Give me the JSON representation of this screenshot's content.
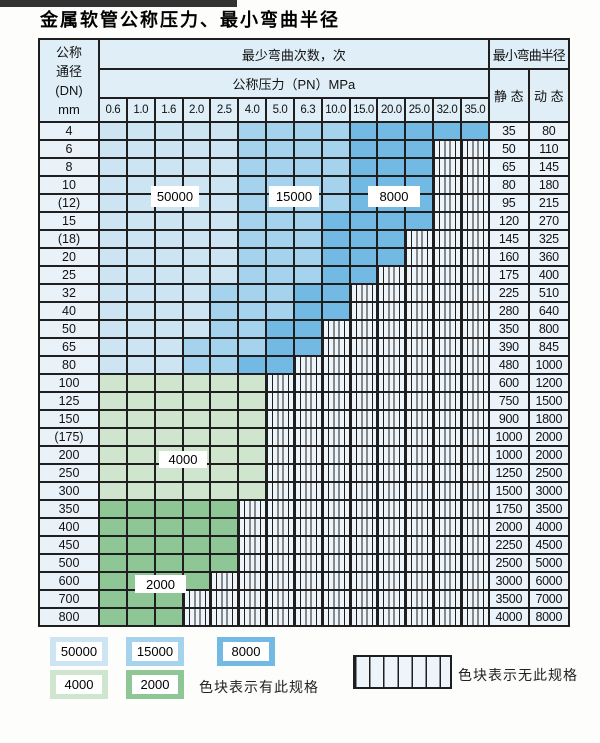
{
  "title": "金属软管公称压力、最小弯曲半径",
  "table": {
    "corner": {
      "lines": [
        "公称",
        "通径",
        "(DN)",
        "mm"
      ]
    },
    "bend_cycles_header": "最少弯曲次数，次",
    "pressure_header": "公称压力（PN）MPa",
    "radius_header": "最小弯曲半径",
    "static_header": "静 态",
    "dynamic_header": "动 态",
    "pressure_columns": [
      "0.6",
      "1.0",
      "1.6",
      "2.0",
      "2.5",
      "4.0",
      "5.0",
      "6.3",
      "10.0",
      "15.0",
      "20.0",
      "25.0",
      "32.0",
      "35.0"
    ],
    "cell_categories": {
      "b50000": "最少弯曲次数 50000 次",
      "b15000": "最少弯曲次数 15000 次",
      "b8000": "最少弯曲次数 8000 次",
      "g4000": "最少弯曲次数 4000 次",
      "g2000": "最少弯曲次数 2000 次",
      "none": "无此规格"
    },
    "rows": [
      {
        "dn": "4",
        "b50000": 5,
        "b15000": 4,
        "b8000": 5,
        "g4000": 0,
        "g2000": 0,
        "static": "35",
        "dynamic": "80"
      },
      {
        "dn": "6",
        "b50000": 5,
        "b15000": 4,
        "b8000": 3,
        "g4000": 0,
        "g2000": 0,
        "static": "50",
        "dynamic": "110"
      },
      {
        "dn": "8",
        "b50000": 5,
        "b15000": 4,
        "b8000": 3,
        "g4000": 0,
        "g2000": 0,
        "static": "65",
        "dynamic": "145"
      },
      {
        "dn": "10",
        "b50000": 5,
        "b15000": 4,
        "b8000": 3,
        "g4000": 0,
        "g2000": 0,
        "static": "80",
        "dynamic": "180"
      },
      {
        "dn": "(12)",
        "b50000": 5,
        "b15000": 4,
        "b8000": 3,
        "g4000": 0,
        "g2000": 0,
        "static": "95",
        "dynamic": "215"
      },
      {
        "dn": "15",
        "b50000": 5,
        "b15000": 3,
        "b8000": 4,
        "g4000": 0,
        "g2000": 0,
        "static": "120",
        "dynamic": "270"
      },
      {
        "dn": "(18)",
        "b50000": 5,
        "b15000": 3,
        "b8000": 3,
        "g4000": 0,
        "g2000": 0,
        "static": "145",
        "dynamic": "325"
      },
      {
        "dn": "20",
        "b50000": 5,
        "b15000": 3,
        "b8000": 3,
        "g4000": 0,
        "g2000": 0,
        "static": "160",
        "dynamic": "360"
      },
      {
        "dn": "25",
        "b50000": 5,
        "b15000": 3,
        "b8000": 2,
        "g4000": 0,
        "g2000": 0,
        "static": "175",
        "dynamic": "400"
      },
      {
        "dn": "32",
        "b50000": 4,
        "b15000": 3,
        "b8000": 2,
        "g4000": 0,
        "g2000": 0,
        "static": "225",
        "dynamic": "510"
      },
      {
        "dn": "40",
        "b50000": 4,
        "b15000": 3,
        "b8000": 2,
        "g4000": 0,
        "g2000": 0,
        "static": "280",
        "dynamic": "640"
      },
      {
        "dn": "50",
        "b50000": 4,
        "b15000": 2,
        "b8000": 2,
        "g4000": 0,
        "g2000": 0,
        "static": "350",
        "dynamic": "800"
      },
      {
        "dn": "65",
        "b50000": 3,
        "b15000": 3,
        "b8000": 2,
        "g4000": 0,
        "g2000": 0,
        "static": "390",
        "dynamic": "845"
      },
      {
        "dn": "80",
        "b50000": 3,
        "b15000": 2,
        "b8000": 2,
        "g4000": 0,
        "g2000": 0,
        "static": "480",
        "dynamic": "1000"
      },
      {
        "dn": "100",
        "b50000": 0,
        "b15000": 0,
        "b8000": 0,
        "g4000": 6,
        "g2000": 0,
        "static": "600",
        "dynamic": "1200"
      },
      {
        "dn": "125",
        "b50000": 0,
        "b15000": 0,
        "b8000": 0,
        "g4000": 6,
        "g2000": 0,
        "static": "750",
        "dynamic": "1500"
      },
      {
        "dn": "150",
        "b50000": 0,
        "b15000": 0,
        "b8000": 0,
        "g4000": 6,
        "g2000": 0,
        "static": "900",
        "dynamic": "1800"
      },
      {
        "dn": "(175)",
        "b50000": 0,
        "b15000": 0,
        "b8000": 0,
        "g4000": 6,
        "g2000": 0,
        "static": "1000",
        "dynamic": "2000"
      },
      {
        "dn": "200",
        "b50000": 0,
        "b15000": 0,
        "b8000": 0,
        "g4000": 6,
        "g2000": 0,
        "static": "1000",
        "dynamic": "2000"
      },
      {
        "dn": "250",
        "b50000": 0,
        "b15000": 0,
        "b8000": 0,
        "g4000": 6,
        "g2000": 0,
        "static": "1250",
        "dynamic": "2500"
      },
      {
        "dn": "300",
        "b50000": 0,
        "b15000": 0,
        "b8000": 0,
        "g4000": 6,
        "g2000": 0,
        "static": "1500",
        "dynamic": "3000"
      },
      {
        "dn": "350",
        "b50000": 0,
        "b15000": 0,
        "b8000": 0,
        "g4000": 0,
        "g2000": 5,
        "static": "1750",
        "dynamic": "3500"
      },
      {
        "dn": "400",
        "b50000": 0,
        "b15000": 0,
        "b8000": 0,
        "g4000": 0,
        "g2000": 5,
        "static": "2000",
        "dynamic": "4000"
      },
      {
        "dn": "450",
        "b50000": 0,
        "b15000": 0,
        "b8000": 0,
        "g4000": 0,
        "g2000": 5,
        "static": "2250",
        "dynamic": "4500"
      },
      {
        "dn": "500",
        "b50000": 0,
        "b15000": 0,
        "b8000": 0,
        "g4000": 0,
        "g2000": 5,
        "static": "2500",
        "dynamic": "5000"
      },
      {
        "dn": "600",
        "b50000": 0,
        "b15000": 0,
        "b8000": 0,
        "g4000": 0,
        "g2000": 4,
        "static": "3000",
        "dynamic": "6000"
      },
      {
        "dn": "700",
        "b50000": 0,
        "b15000": 0,
        "b8000": 0,
        "g4000": 0,
        "g2000": 3,
        "static": "3500",
        "dynamic": "7000"
      },
      {
        "dn": "800",
        "b50000": 0,
        "b15000": 0,
        "b8000": 0,
        "g4000": 0,
        "g2000": 3,
        "static": "4000",
        "dynamic": "8000"
      }
    ],
    "overlay_labels": [
      {
        "text": "50000"
      },
      {
        "text": "15000"
      },
      {
        "text": "8000"
      },
      {
        "text": "4000"
      },
      {
        "text": "2000"
      }
    ]
  },
  "legend": {
    "chips": [
      {
        "label": "50000",
        "category": "b50000"
      },
      {
        "label": "15000",
        "category": "b15000"
      },
      {
        "label": "8000",
        "category": "b8000"
      },
      {
        "label": "4000",
        "category": "g4000"
      },
      {
        "label": "2000",
        "category": "g2000"
      }
    ],
    "has_spec_text": "色块表示有此规格",
    "no_spec_text": "色块表示无此规格"
  },
  "colors": {
    "b50000": "#cde4f3",
    "b15000": "#a5d3ee",
    "b8000": "#72bae3",
    "g4000": "#cfe5cd",
    "g2000": "#8ec795",
    "hatch_bg": "#edf5fb",
    "grid_line": "#1f1f1f",
    "header_bg": "#dfeef7",
    "label_col_bg": "#e9f2f9",
    "value_col_bg": "#ebf3fa",
    "page_bg": "#fdfdfb",
    "top_bar": "#333333"
  }
}
